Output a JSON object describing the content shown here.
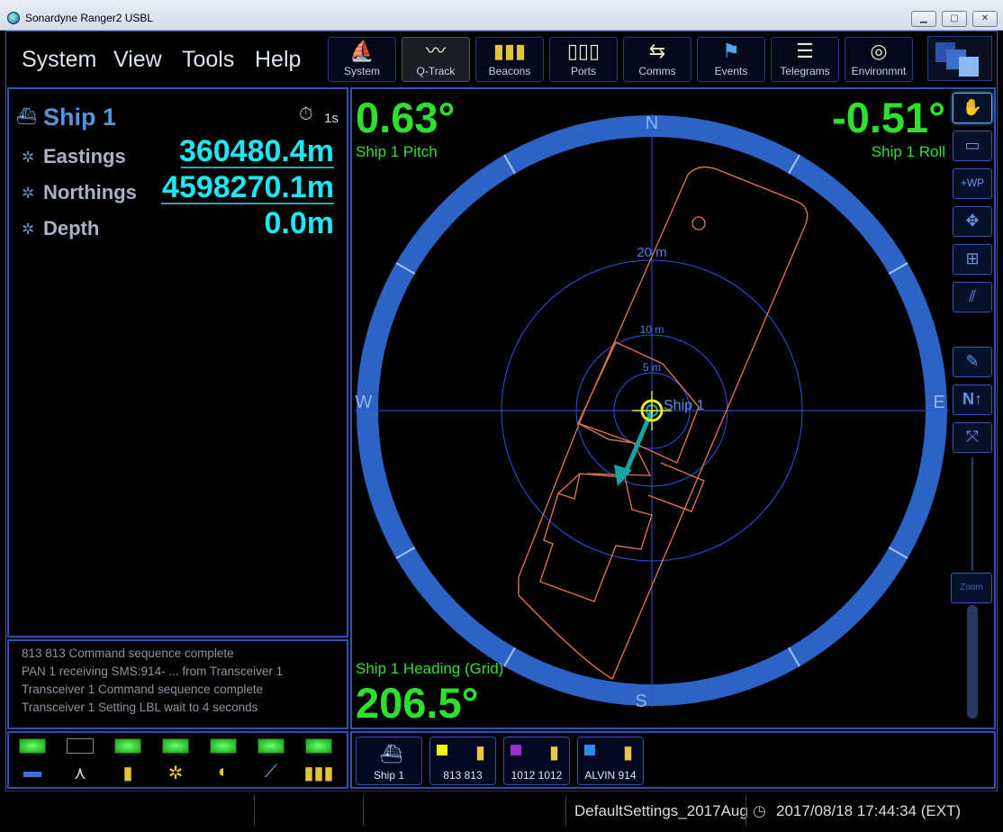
{
  "window": {
    "title": "Sonardyne Ranger2 USBL",
    "min": "▁",
    "max": "▢",
    "close": "✕"
  },
  "menu": [
    "System",
    "View",
    "Tools",
    "Help"
  ],
  "toolbar": [
    {
      "label": "System",
      "icon": "system-icon",
      "glyph": "⛵"
    },
    {
      "label": "Q-Track",
      "icon": "qtrack-icon",
      "glyph": "〰"
    },
    {
      "label": "Beacons",
      "icon": "beacons-icon",
      "glyph": "▮▮▮"
    },
    {
      "label": "Ports",
      "icon": "ports-icon",
      "glyph": "▯▯▯"
    },
    {
      "label": "Comms",
      "icon": "comms-icon",
      "glyph": "⇆"
    },
    {
      "label": "Events",
      "icon": "events-icon",
      "glyph": "⚑"
    },
    {
      "label": "Telegrams",
      "icon": "telegrams-icon",
      "glyph": "☰"
    },
    {
      "label": "Environmnt",
      "icon": "environment-icon",
      "glyph": "◎"
    }
  ],
  "left": {
    "ship_name": "Ship 1",
    "timer": "1s",
    "fields": [
      {
        "label": "Eastings",
        "value": "360480.4m"
      },
      {
        "label": "Northings",
        "value": "4598270.1m"
      },
      {
        "label": "Depth",
        "value": "0.0m"
      }
    ]
  },
  "log": [
    "813 813 Command sequence complete",
    "PAN 1 receiving SMS:914- ... from Transceiver 1",
    "Transceiver 1 Command sequence complete",
    "Transceiver 1 Setting LBL wait to 4 seconds"
  ],
  "display": {
    "pitch_value": "0.63°",
    "pitch_label": "Ship 1 Pitch",
    "roll_value": "-0.51°",
    "roll_label": "Ship 1 Roll",
    "heading_label": "Ship 1 Heading (Grid)",
    "heading_value": "206.5°",
    "compass": {
      "n": "N",
      "e": "E",
      "s": "S",
      "w": "W"
    },
    "ranges": [
      "20 m",
      "10 m",
      "5 m"
    ],
    "ship_label": "Ship 1",
    "heading_deg": 206.5
  },
  "side_tools": [
    {
      "name": "pan-hand-icon",
      "glyph": "✋",
      "active": true
    },
    {
      "name": "ruler-icon",
      "glyph": "▭"
    },
    {
      "name": "add-waypoint-icon",
      "glyph": "+WP"
    },
    {
      "name": "move-icon",
      "glyph": "✥"
    },
    {
      "name": "add-marker-icon",
      "glyph": "⊞"
    },
    {
      "name": "measure-icon",
      "glyph": "⫽"
    },
    {
      "name": "notes-icon",
      "glyph": "✎"
    },
    {
      "name": "north-up-icon",
      "glyph": "N↑"
    },
    {
      "name": "fit-view-icon",
      "glyph": "⤧"
    }
  ],
  "zoom_label": "Zoom",
  "beacons": [
    {
      "label": "Ship 1",
      "color": "",
      "type": "ship"
    },
    {
      "label": "813 813",
      "color": "#f5f500"
    },
    {
      "label": "1012 1012",
      "color": "#9a2fd0"
    },
    {
      "label": "ALVIN 914",
      "color": "#2a8ef0"
    }
  ],
  "status": {
    "settings": "DefaultSettings_2017Aug",
    "datetime": "2017/08/18  17:44:34  (EXT)"
  },
  "colors": {
    "accent": "#2e4fb4",
    "value": "#1de7f2",
    "overlay": "#2ee02e",
    "vessel": "#e07a4e"
  }
}
